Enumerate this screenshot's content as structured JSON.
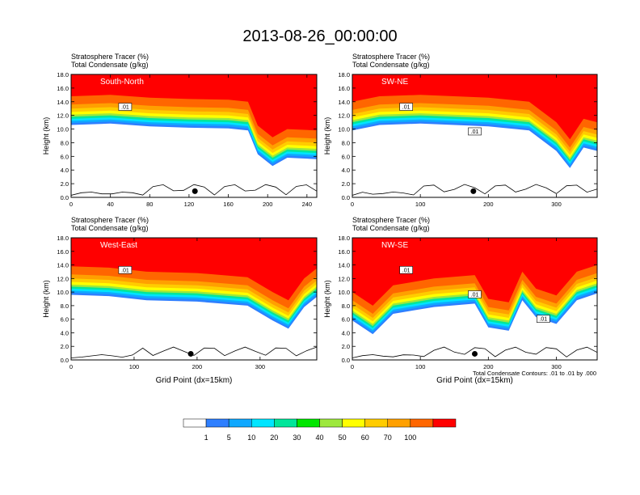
{
  "title": "2013-08-26_00:00:00",
  "note": "Total Condensate Contours: .01 to .01 by .000",
  "colorbar": {
    "colors": [
      "#ffffff",
      "#2e7fff",
      "#0fa8ff",
      "#00e5ff",
      "#00e69a",
      "#00e600",
      "#9de83c",
      "#ffff00",
      "#ffcc00",
      "#ffa000",
      "#ff6600",
      "#ff0000"
    ],
    "labels": [
      "1",
      "5",
      "10",
      "20",
      "30",
      "40",
      "50",
      "60",
      "70",
      "100"
    ]
  },
  "chart_data": [
    {
      "type": "contour",
      "subtitle1": "Stratosphere Tracer   (%)",
      "subtitle2": "Total Condensate   (g/kg)",
      "panel_label": "South-North",
      "ylabel": "Height (km)",
      "xlabel": "",
      "xlim": [
        0,
        250
      ],
      "xticks": [
        "0",
        "40",
        "80",
        "120",
        "160",
        "200",
        "240"
      ],
      "ylim": [
        0,
        18
      ],
      "yticks": [
        "0.0",
        "2.0",
        "4.0",
        "6.0",
        "8.0",
        "10.0",
        "12.0",
        "14.0",
        "16.0",
        "18.0"
      ],
      "marker_x": 126,
      "contour_labels": [
        ".01"
      ],
      "tropopause": [
        [
          0,
          14.8
        ],
        [
          40,
          15.0
        ],
        [
          80,
          14.6
        ],
        [
          120,
          14.4
        ],
        [
          160,
          14.3
        ],
        [
          180,
          14.0
        ],
        [
          190,
          10.5
        ],
        [
          205,
          8.8
        ],
        [
          220,
          10.0
        ],
        [
          250,
          9.8
        ]
      ]
    },
    {
      "type": "contour",
      "subtitle1": "Stratosphere Tracer   (%)",
      "subtitle2": "Total Condensate   (g/kg)",
      "panel_label": "SW-NE",
      "ylabel": "Height (km)",
      "xlabel": "",
      "xlim": [
        0,
        360
      ],
      "xticks": [
        "0",
        "100",
        "200",
        "300"
      ],
      "ylim": [
        0,
        18
      ],
      "yticks": [
        "0.0",
        "2.0",
        "4.0",
        "6.0",
        "8.0",
        "10.0",
        "12.0",
        "14.0",
        "16.0",
        "18.0"
      ],
      "marker_x": 178,
      "contour_labels": [
        ".01",
        ".01"
      ],
      "tropopause": [
        [
          0,
          14.0
        ],
        [
          40,
          14.8
        ],
        [
          100,
          15.0
        ],
        [
          200,
          14.6
        ],
        [
          260,
          14.0
        ],
        [
          300,
          11.0
        ],
        [
          320,
          8.5
        ],
        [
          340,
          11.5
        ],
        [
          360,
          11.0
        ]
      ]
    },
    {
      "type": "contour",
      "subtitle1": "Stratosphere Tracer   (%)",
      "subtitle2": "Total Condensate   (g/kg)",
      "panel_label": "West-East",
      "ylabel": "Height (km)",
      "xlabel": "Grid Point (dx=15km)",
      "xlim": [
        0,
        390
      ],
      "xticks": [
        "0",
        "100",
        "200",
        "300"
      ],
      "ylim": [
        0,
        18
      ],
      "yticks": [
        "0.0",
        "2.0",
        "4.0",
        "6.0",
        "8.0",
        "10.0",
        "12.0",
        "14.0",
        "16.0",
        "18.0"
      ],
      "marker_x": 190,
      "contour_labels": [
        ".01"
      ],
      "tropopause": [
        [
          0,
          13.8
        ],
        [
          60,
          13.6
        ],
        [
          120,
          13.0
        ],
        [
          200,
          12.8
        ],
        [
          280,
          12.2
        ],
        [
          320,
          10.0
        ],
        [
          345,
          8.8
        ],
        [
          370,
          12.0
        ],
        [
          390,
          13.5
        ]
      ]
    },
    {
      "type": "contour",
      "subtitle1": "Stratosphere Tracer   (%)",
      "subtitle2": "Total Condensate   (g/kg)",
      "panel_label": "NW-SE",
      "ylabel": "Height (km)",
      "xlabel": "Grid Point (dx=15km)",
      "xlim": [
        0,
        360
      ],
      "xticks": [
        "0",
        "100",
        "200",
        "300"
      ],
      "ylim": [
        0,
        18
      ],
      "yticks": [
        "0.0",
        "2.0",
        "4.0",
        "6.0",
        "8.0",
        "10.0",
        "12.0",
        "14.0",
        "16.0",
        "18.0"
      ],
      "marker_x": 180,
      "contour_labels": [
        ".01",
        ".01",
        ".01"
      ],
      "tropopause": [
        [
          0,
          10.0
        ],
        [
          30,
          8.0
        ],
        [
          60,
          11.0
        ],
        [
          120,
          12.0
        ],
        [
          180,
          12.5
        ],
        [
          200,
          9.0
        ],
        [
          230,
          8.5
        ],
        [
          250,
          13.0
        ],
        [
          270,
          10.5
        ],
        [
          300,
          9.5
        ],
        [
          330,
          13.0
        ],
        [
          360,
          14.0
        ]
      ]
    }
  ]
}
